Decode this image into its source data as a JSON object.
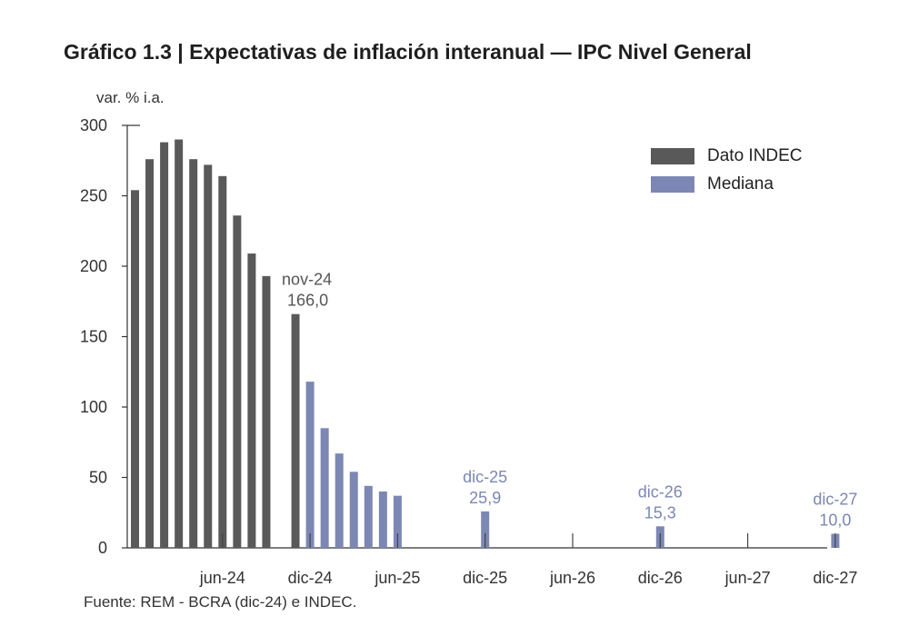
{
  "title": "Gráfico 1.3 | Expectativas de inflación interanual — IPC Nivel General",
  "unit_label": "var. % i.a.",
  "source": "Fuente: REM - BCRA (dic-24) e INDEC.",
  "colors": {
    "indec": "#595959",
    "mediana": "#7c87b4",
    "axis": "#333333"
  },
  "chart_data": {
    "type": "bar",
    "ylim": [
      0,
      300
    ],
    "yticks": [
      0,
      50,
      100,
      150,
      200,
      250,
      300
    ],
    "x_tick_labels": [
      "jun-24",
      "dic-24",
      "jun-25",
      "dic-25",
      "jun-26",
      "dic-26",
      "jun-27",
      "dic-27"
    ],
    "legend": {
      "placement": "top-right",
      "entries": [
        "Dato INDEC",
        "Mediana"
      ]
    },
    "series": [
      {
        "name": "Dato INDEC",
        "points": [
          {
            "period": "dic-23",
            "value": 254
          },
          {
            "period": "ene-24",
            "value": 276
          },
          {
            "period": "feb-24",
            "value": 288
          },
          {
            "period": "mar-24",
            "value": 290
          },
          {
            "period": "abr-24",
            "value": 276
          },
          {
            "period": "may-24",
            "value": 272
          },
          {
            "period": "jun-24",
            "value": 264
          },
          {
            "period": "jul-24",
            "value": 236
          },
          {
            "period": "ago-24",
            "value": 209
          },
          {
            "period": "sep-24",
            "value": 193
          },
          {
            "period": "nov-24",
            "value": 166
          }
        ]
      },
      {
        "name": "Mediana",
        "points": [
          {
            "period": "dic-24",
            "value": 118
          },
          {
            "period": "ene-25",
            "value": 85
          },
          {
            "period": "feb-25",
            "value": 67
          },
          {
            "period": "mar-25",
            "value": 54
          },
          {
            "period": "abr-25",
            "value": 44
          },
          {
            "period": "may-25",
            "value": 40
          },
          {
            "period": "jun-25",
            "value": 37
          },
          {
            "period": "dic-25",
            "value": 25.9
          },
          {
            "period": "dic-26",
            "value": 15.3
          },
          {
            "period": "dic-27",
            "value": 10.0
          }
        ]
      }
    ],
    "annotations": [
      {
        "period": "nov-24",
        "series": "Dato INDEC",
        "label": "nov-24",
        "value_text": "166,0"
      },
      {
        "period": "dic-25",
        "series": "Mediana",
        "label": "dic-25",
        "value_text": "25,9"
      },
      {
        "period": "dic-26",
        "series": "Mediana",
        "label": "dic-26",
        "value_text": "15,3"
      },
      {
        "period": "dic-27",
        "series": "Mediana",
        "label": "dic-27",
        "value_text": "10,0"
      }
    ]
  }
}
